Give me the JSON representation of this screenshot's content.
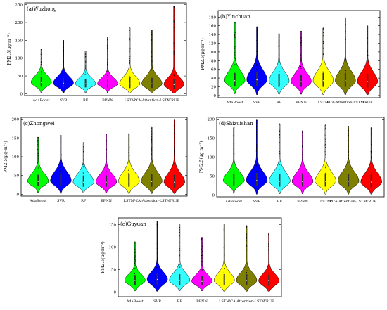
{
  "figure": {
    "background": "#ffffff"
  },
  "chart_data": [
    {
      "type": "violin",
      "title": "(a)Wuzhong",
      "ylabel": "PM2.5(μg·m⁻³)",
      "ylim": [
        -5,
        255
      ],
      "yticks": [
        0,
        50,
        100,
        150,
        200,
        250
      ],
      "categories": [
        "AdaBoost",
        "SVR",
        "RF",
        "BPNN",
        "LSTM",
        "PCA-Attention-LSTM",
        "TRUE"
      ],
      "colors": [
        "#00ff00",
        "#0000ff",
        "#33ffff",
        "#ff00ff",
        "#ffff00",
        "#808000",
        "#ff0000"
      ],
      "series": [
        {
          "category": "AdaBoost",
          "min": 3,
          "q1": 20,
          "median": 32,
          "q3": 48,
          "max": 125
        },
        {
          "category": "SVR",
          "min": 2,
          "q1": 18,
          "median": 30,
          "q3": 45,
          "max": 150
        },
        {
          "category": "RF",
          "min": 3,
          "q1": 18,
          "median": 28,
          "q3": 42,
          "max": 120
        },
        {
          "category": "BPNN",
          "min": 2,
          "q1": 18,
          "median": 28,
          "q3": 42,
          "max": 160
        },
        {
          "category": "LSTM",
          "min": 2,
          "q1": 16,
          "median": 28,
          "q3": 45,
          "max": 185
        },
        {
          "category": "PCA-Attention-LSTM",
          "min": 2,
          "q1": 16,
          "median": 28,
          "q3": 45,
          "max": 178
        },
        {
          "category": "TRUE",
          "min": 2,
          "q1": 14,
          "median": 26,
          "q3": 42,
          "max": 245
        }
      ]
    },
    {
      "type": "violin",
      "title": "(b)Yinchuan",
      "ylabel": "PM2.5(μg·m⁻³)",
      "ylim": [
        -5,
        195
      ],
      "yticks": [
        0,
        20,
        40,
        60,
        80,
        100,
        120,
        140,
        160,
        180
      ],
      "categories": [
        "AdaBoost",
        "SVR",
        "RF",
        "BPNN",
        "LSTM",
        "PCA-Attention-LSTM",
        "TRUE"
      ],
      "colors": [
        "#00ff00",
        "#0000ff",
        "#33ffff",
        "#ff00ff",
        "#ffff00",
        "#808000",
        "#ff0000"
      ],
      "series": [
        {
          "category": "AdaBoost",
          "min": 4,
          "q1": 22,
          "median": 34,
          "q3": 52,
          "max": 168
        },
        {
          "category": "SVR",
          "min": 2,
          "q1": 22,
          "median": 36,
          "q3": 55,
          "max": 158
        },
        {
          "category": "RF",
          "min": 3,
          "q1": 20,
          "median": 33,
          "q3": 50,
          "max": 142
        },
        {
          "category": "BPNN",
          "min": 3,
          "q1": 20,
          "median": 32,
          "q3": 48,
          "max": 148
        },
        {
          "category": "LSTM",
          "min": 2,
          "q1": 20,
          "median": 34,
          "q3": 52,
          "max": 155
        },
        {
          "category": "PCA-Attention-LSTM",
          "min": 2,
          "q1": 20,
          "median": 34,
          "q3": 52,
          "max": 178
        },
        {
          "category": "TRUE",
          "min": 2,
          "q1": 18,
          "median": 32,
          "q3": 50,
          "max": 160
        }
      ]
    },
    {
      "type": "violin",
      "title": "(c)Zhongwei",
      "ylabel": "PM2.5(μg·m⁻³)",
      "ylim": [
        -5,
        205
      ],
      "yticks": [
        0,
        50,
        100,
        150,
        200
      ],
      "categories": [
        "AdaBoost",
        "SVR",
        "RF",
        "BPNN",
        "LSTM",
        "PCA-Attention-LSTM",
        "TRUE"
      ],
      "colors": [
        "#00ff00",
        "#0000ff",
        "#33ffff",
        "#ff00ff",
        "#ffff00",
        "#808000",
        "#ff0000"
      ],
      "series": [
        {
          "category": "AdaBoost",
          "min": 3,
          "q1": 22,
          "median": 34,
          "q3": 52,
          "max": 152
        },
        {
          "category": "SVR",
          "min": 2,
          "q1": 22,
          "median": 36,
          "q3": 56,
          "max": 158
        },
        {
          "category": "RF",
          "min": 3,
          "q1": 20,
          "median": 32,
          "q3": 50,
          "max": 138
        },
        {
          "category": "BPNN",
          "min": 3,
          "q1": 20,
          "median": 32,
          "q3": 50,
          "max": 160
        },
        {
          "category": "LSTM",
          "min": 2,
          "q1": 20,
          "median": 34,
          "q3": 54,
          "max": 162
        },
        {
          "category": "PCA-Attention-LSTM",
          "min": 2,
          "q1": 20,
          "median": 34,
          "q3": 54,
          "max": 180
        },
        {
          "category": "TRUE",
          "min": 2,
          "q1": 18,
          "median": 32,
          "q3": 52,
          "max": 200
        }
      ]
    },
    {
      "type": "violin",
      "title": "(d)Shizuishan",
      "ylabel": "PM2.5(μg·m⁻³)",
      "ylim": [
        -5,
        205
      ],
      "yticks": [
        0,
        50,
        100,
        150,
        200
      ],
      "categories": [
        "AdaBoost",
        "SVR",
        "RF",
        "BPNN",
        "LSTM",
        "PCA-Attention-LSTM",
        "TRUE"
      ],
      "colors": [
        "#00ff00",
        "#0000ff",
        "#33ffff",
        "#ff00ff",
        "#ffff00",
        "#808000",
        "#ff0000"
      ],
      "series": [
        {
          "category": "AdaBoost",
          "min": 4,
          "q1": 25,
          "median": 38,
          "q3": 56,
          "max": 178
        },
        {
          "category": "SVR",
          "min": 2,
          "q1": 24,
          "median": 38,
          "q3": 58,
          "max": 200
        },
        {
          "category": "RF",
          "min": 3,
          "q1": 22,
          "median": 36,
          "q3": 56,
          "max": 188
        },
        {
          "category": "BPNN",
          "min": 3,
          "q1": 22,
          "median": 35,
          "q3": 54,
          "max": 170
        },
        {
          "category": "LSTM",
          "min": 2,
          "q1": 22,
          "median": 36,
          "q3": 56,
          "max": 185
        },
        {
          "category": "PCA-Attention-LSTM",
          "min": 2,
          "q1": 22,
          "median": 36,
          "q3": 56,
          "max": 182
        },
        {
          "category": "TRUE",
          "min": 2,
          "q1": 20,
          "median": 34,
          "q3": 54,
          "max": 178
        }
      ]
    },
    {
      "type": "violin",
      "title": "(e)Guyuan",
      "ylabel": "PM2.5(μg·m⁻³)",
      "ylim": [
        -10,
        165
      ],
      "yticks": [
        0,
        50,
        100,
        150
      ],
      "categories": [
        "AdaBoost",
        "SVR",
        "RF",
        "BPNN",
        "LSTM",
        "PCA-Attention-LSTM",
        "TRUE"
      ],
      "colors": [
        "#00ff00",
        "#0000ff",
        "#33ffff",
        "#ff00ff",
        "#ffff00",
        "#808000",
        "#ff0000"
      ],
      "series": [
        {
          "category": "AdaBoost",
          "min": 3,
          "q1": 16,
          "median": 26,
          "q3": 38,
          "max": 112
        },
        {
          "category": "SVR",
          "min": 2,
          "q1": 16,
          "median": 28,
          "q3": 42,
          "max": 158
        },
        {
          "category": "RF",
          "min": 3,
          "q1": 16,
          "median": 26,
          "q3": 40,
          "max": 150
        },
        {
          "category": "BPNN",
          "min": 3,
          "q1": 15,
          "median": 24,
          "q3": 36,
          "max": 122
        },
        {
          "category": "LSTM",
          "min": 2,
          "q1": 15,
          "median": 26,
          "q3": 40,
          "max": 152
        },
        {
          "category": "PCA-Attention-LSTM",
          "min": 2,
          "q1": 15,
          "median": 26,
          "q3": 40,
          "max": 148
        },
        {
          "category": "TRUE",
          "min": 2,
          "q1": 14,
          "median": 25,
          "q3": 38,
          "max": 132
        }
      ]
    }
  ]
}
